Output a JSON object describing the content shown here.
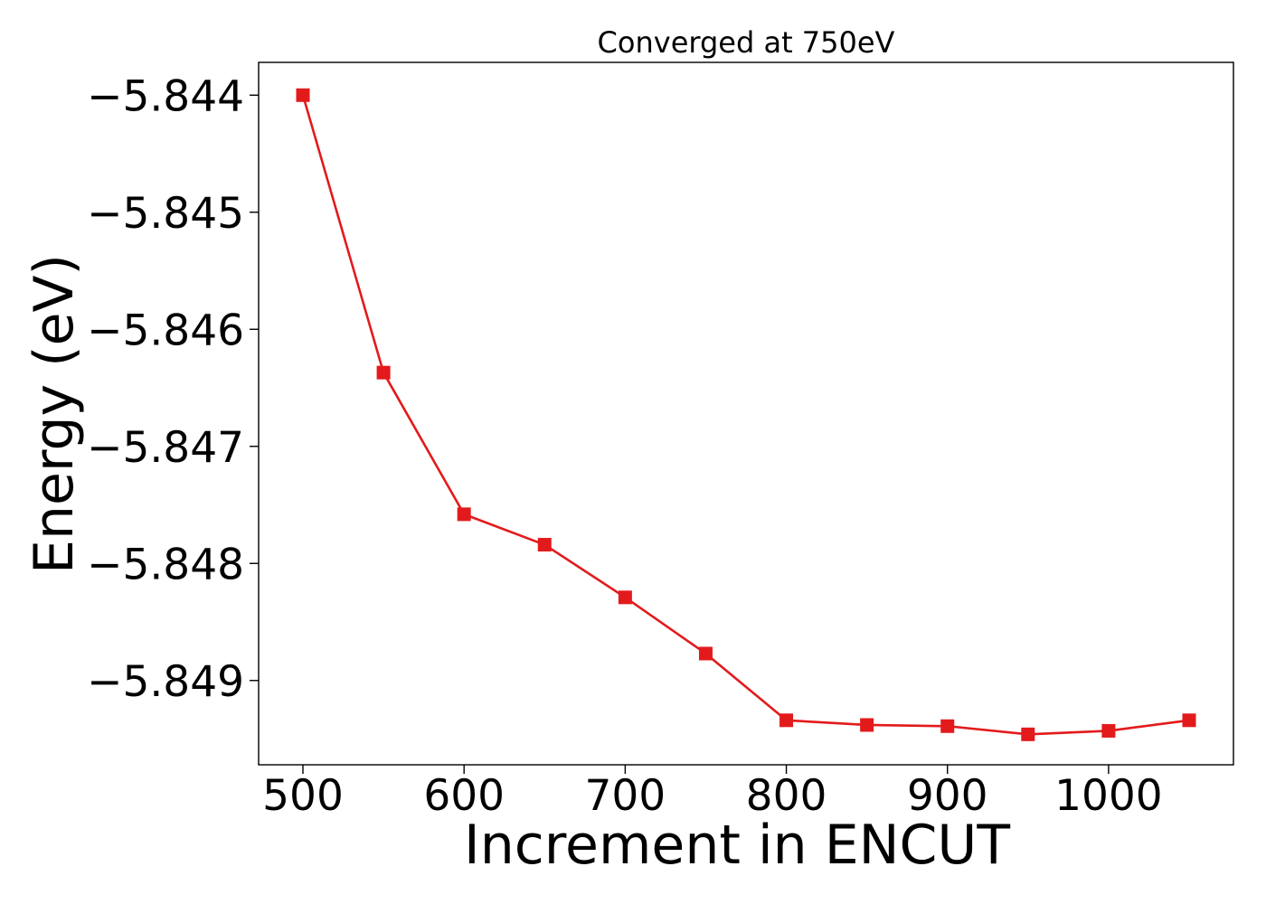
{
  "chart_data": {
    "type": "line",
    "title": "Converged at 750eV",
    "xlabel": "Increment in ENCUT",
    "ylabel": "Energy (eV)",
    "xlim": [
      472.5,
      1077.5
    ],
    "ylim": [
      -5.84972,
      -5.84372
    ],
    "xticks": [
      500,
      600,
      700,
      800,
      900,
      1000
    ],
    "xtick_labels": [
      "500",
      "600",
      "700",
      "800",
      "900",
      "1000"
    ],
    "yticks": [
      -5.844,
      -5.845,
      -5.846,
      -5.847,
      -5.848,
      -5.849
    ],
    "ytick_labels": [
      "−5.844",
      "−5.845",
      "−5.846",
      "−5.847",
      "−5.848",
      "−5.849"
    ],
    "grid": false,
    "series": [
      {
        "color": "#e31a1c",
        "marker": "square",
        "x": [
          500,
          550,
          600,
          650,
          700,
          750,
          800,
          850,
          900,
          950,
          1000,
          1050
        ],
        "y": [
          -5.844,
          -5.84637,
          -5.84758,
          -5.84784,
          -5.84829,
          -5.84877,
          -5.84934,
          -5.84938,
          -5.84939,
          -5.84946,
          -5.84943,
          -5.84934
        ]
      }
    ]
  }
}
